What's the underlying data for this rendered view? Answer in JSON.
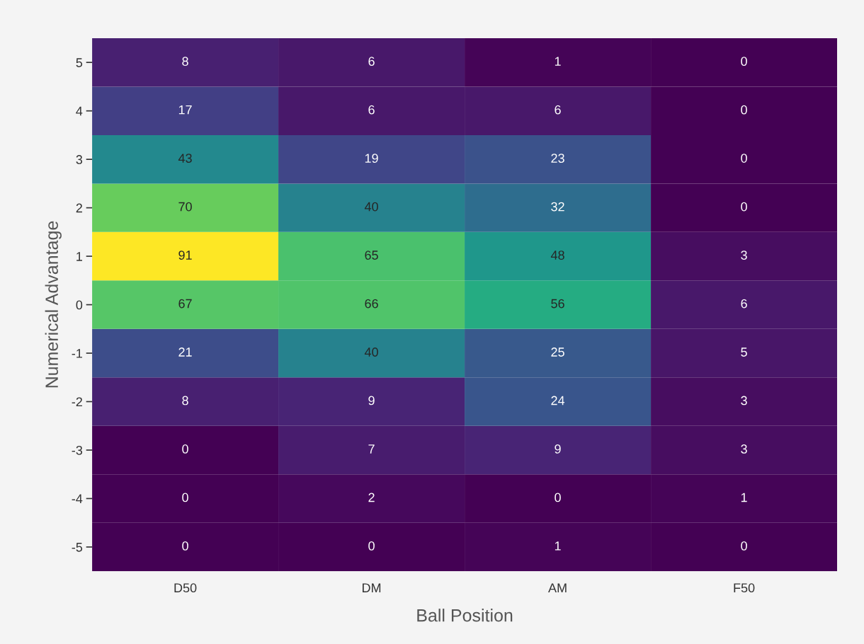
{
  "chart_data": {
    "type": "heatmap",
    "xlabel": "Ball Position",
    "ylabel": "Numerical Advantage",
    "categories": [
      "D50",
      "DM",
      "AM",
      "F50"
    ],
    "y_categories": [
      "5",
      "4",
      "3",
      "2",
      "1",
      "0",
      "-1",
      "-2",
      "-3",
      "-4",
      "-5"
    ],
    "cells": [
      [
        8,
        6,
        1,
        0
      ],
      [
        17,
        6,
        6,
        0
      ],
      [
        43,
        19,
        23,
        0
      ],
      [
        70,
        40,
        32,
        0
      ],
      [
        91,
        65,
        48,
        3
      ],
      [
        67,
        66,
        56,
        6
      ],
      [
        21,
        40,
        25,
        5
      ],
      [
        8,
        9,
        24,
        3
      ],
      [
        0,
        7,
        9,
        3
      ],
      [
        0,
        2,
        0,
        1
      ],
      [
        0,
        0,
        1,
        0
      ]
    ],
    "data_labels": true
  }
}
